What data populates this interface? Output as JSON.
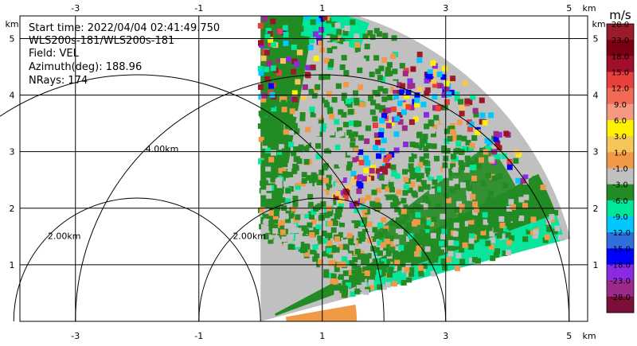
{
  "info": {
    "start_time": "Start time: 2022/04/04 02:41:49.750",
    "radar": "WLS200s-181/WLS200s-181",
    "field": "Field: VEL",
    "azimuth": "Azimuth(deg): 188.96",
    "nrays": "NRays: 174"
  },
  "chart_data": {
    "type": "heatmap",
    "title": "",
    "xlabel": "km",
    "ylabel": "km",
    "xlim": [
      -3.9,
      5.3
    ],
    "ylim": [
      0,
      5.4
    ],
    "x_ticks": [
      "-3",
      "-1",
      "1",
      "3",
      "5"
    ],
    "y_ticks": [
      "1",
      "2",
      "3",
      "4",
      "5"
    ],
    "grid": true,
    "range_rings": [
      {
        "label": "2.00km",
        "radius_km": 2.0,
        "center_x_km": 1.0
      },
      {
        "label": "4.00km",
        "radius_km": 4.0,
        "center_x_km": 1.0
      },
      {
        "label": "2.00km",
        "radius_km": 2.0,
        "center_x_km": -2.0
      },
      {
        "label": "4.00km",
        "radius_km": 4.0,
        "center_x_km": -2.0
      }
    ],
    "sector": {
      "origin_km": [
        0,
        0
      ],
      "max_range_km": 5.2,
      "azimuth_deg_min": 0,
      "azimuth_deg_max": 75
    },
    "colorbar": {
      "unit": "m/s",
      "labels": [
        "28.0",
        "23.0",
        "18.0",
        "15.0",
        "12.0",
        "9.0",
        "6.0",
        "3.0",
        "1.0",
        "-1.0",
        "-3.0",
        "-6.0",
        "-9.0",
        "-12.0",
        "-15.0",
        "-18.0",
        "-23.0",
        "-28.0"
      ],
      "colors": [
        "#9a1b2a",
        "#7a0014",
        "#a00f2a",
        "#e8403c",
        "#f06a55",
        "#f59a80",
        "#fff200",
        "#f7c65a",
        "#f09a48",
        "#c0c0c0",
        "#238b23",
        "#00e69a",
        "#00c8ff",
        "#2f6fdc",
        "#0000ff",
        "#8a2be2",
        "#9b2a8a",
        "#7a0f3a"
      ]
    }
  }
}
